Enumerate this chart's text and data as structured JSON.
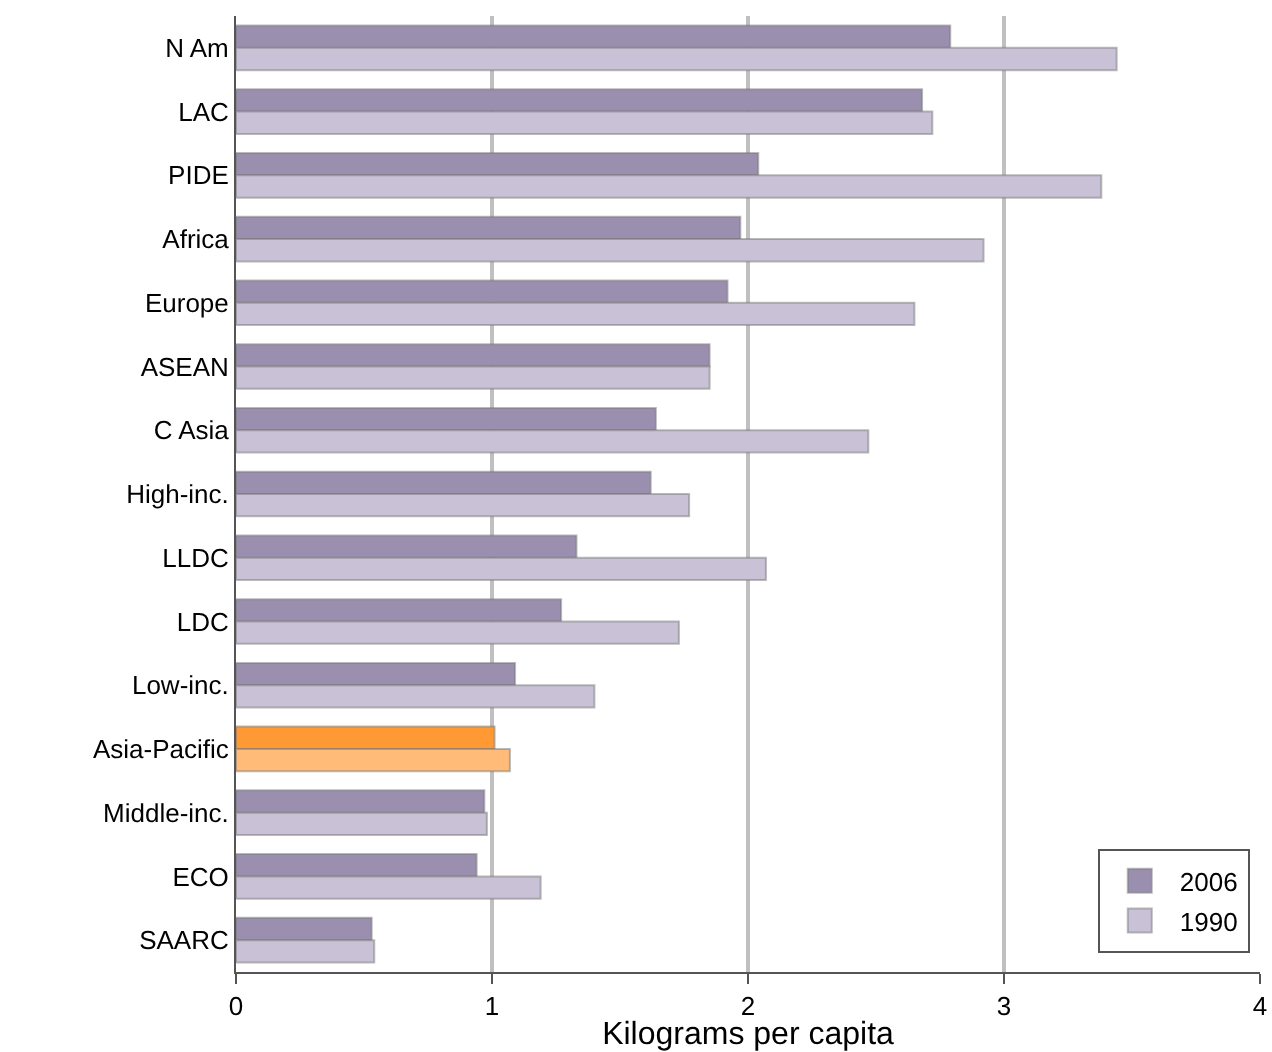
{
  "chart_data": {
    "type": "bar",
    "orientation": "horizontal",
    "xlabel": "Kilograms per capita",
    "categories": [
      "N Am",
      "LAC",
      "PIDE",
      "Africa",
      "Europe",
      "ASEAN",
      "C Asia",
      "High-inc.",
      "LLDC",
      "LDC",
      "Low-inc.",
      "Asia-Pacific",
      "Middle-inc.",
      "ECO",
      "SAARC"
    ],
    "series": [
      {
        "name": "2006",
        "color": "#9b8fb0",
        "colors": [
          "#9b8fb0",
          "#9b8fb0",
          "#9b8fb0",
          "#9b8fb0",
          "#9b8fb0",
          "#9b8fb0",
          "#9b8fb0",
          "#9b8fb0",
          "#9b8fb0",
          "#9b8fb0",
          "#9b8fb0",
          "#ff9933",
          "#9b8fb0",
          "#9b8fb0",
          "#9b8fb0"
        ],
        "values": [
          2.79,
          2.68,
          2.04,
          1.97,
          1.92,
          1.85,
          1.64,
          1.62,
          1.33,
          1.27,
          1.09,
          1.01,
          0.97,
          0.94,
          0.53
        ]
      },
      {
        "name": "1990",
        "color": "#c9c1d6",
        "colors": [
          "#c9c1d6",
          "#c9c1d6",
          "#c9c1d6",
          "#c9c1d6",
          "#c9c1d6",
          "#c9c1d6",
          "#c9c1d6",
          "#c9c1d6",
          "#c9c1d6",
          "#c9c1d6",
          "#c9c1d6",
          "#ffbb77",
          "#c9c1d6",
          "#c9c1d6",
          "#c9c1d6"
        ],
        "values": [
          3.44,
          2.72,
          3.38,
          2.92,
          2.65,
          1.85,
          2.47,
          1.77,
          2.07,
          1.73,
          1.4,
          1.07,
          0.98,
          1.19,
          0.54
        ]
      }
    ],
    "xlim": [
      0,
      4
    ],
    "xticks": [
      0,
      1,
      2,
      3,
      4
    ],
    "grid": "x",
    "legend": "bottom right"
  }
}
